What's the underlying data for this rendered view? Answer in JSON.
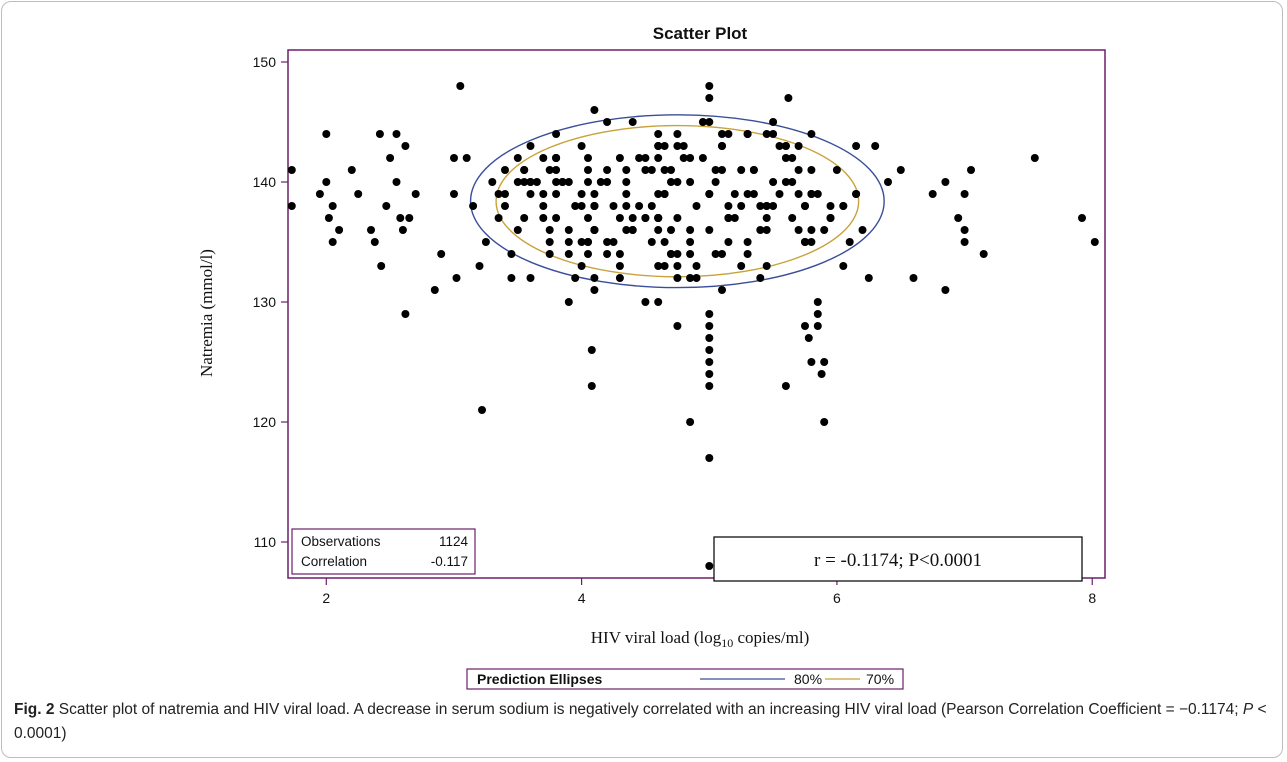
{
  "chart_data": {
    "type": "scatter",
    "title": "Scatter Plot",
    "xlabel": {
      "pre": "HIV viral load (log",
      "sub": "10",
      "post": " copies/ml)"
    },
    "ylabel": "Natremia (mmol/l)",
    "xlim": [
      1.7,
      8.1
    ],
    "ylim": [
      107,
      151
    ],
    "xticks": [
      2,
      4,
      6,
      8
    ],
    "yticks": [
      110,
      120,
      130,
      140,
      150
    ],
    "grid": false,
    "annotation": "r = -0.1174; P<0.0001",
    "stats": {
      "observations_label": "Observations",
      "observations_value": "1124",
      "correlation_label": "Correlation",
      "correlation_value": "-0.117"
    },
    "legend": {
      "title": "Prediction Ellipses",
      "items": [
        {
          "label": "80%",
          "color": "#3a4e9a"
        },
        {
          "label": "70%",
          "color": "#c8a23a"
        }
      ],
      "placement": "bottom"
    },
    "ellipses": [
      {
        "level": "80%",
        "center": [
          4.75,
          138.4
        ],
        "radii": [
          1.62,
          7.2
        ],
        "color": "#3a4e9a"
      },
      {
        "level": "70%",
        "center": [
          4.75,
          138.4
        ],
        "radii": [
          1.42,
          6.3
        ],
        "color": "#c8a23a"
      }
    ],
    "points": [
      [
        1.73,
        141
      ],
      [
        1.73,
        138
      ],
      [
        1.95,
        139
      ],
      [
        2.0,
        140
      ],
      [
        2.0,
        144
      ],
      [
        2.02,
        137
      ],
      [
        2.05,
        138
      ],
      [
        2.05,
        135
      ],
      [
        2.1,
        136
      ],
      [
        2.2,
        141
      ],
      [
        2.25,
        139
      ],
      [
        2.35,
        136
      ],
      [
        2.38,
        135
      ],
      [
        2.42,
        144
      ],
      [
        2.43,
        133
      ],
      [
        2.47,
        138
      ],
      [
        2.5,
        142
      ],
      [
        2.55,
        144
      ],
      [
        2.55,
        140
      ],
      [
        2.58,
        137
      ],
      [
        2.6,
        136
      ],
      [
        2.62,
        143
      ],
      [
        2.62,
        129
      ],
      [
        2.65,
        137
      ],
      [
        2.7,
        139
      ],
      [
        2.85,
        131
      ],
      [
        2.9,
        134
      ],
      [
        3.0,
        139
      ],
      [
        3.0,
        142
      ],
      [
        3.02,
        132
      ],
      [
        3.05,
        148
      ],
      [
        3.1,
        142
      ],
      [
        3.15,
        138
      ],
      [
        3.2,
        133
      ],
      [
        3.22,
        121
      ],
      [
        3.25,
        135
      ],
      [
        3.4,
        141
      ],
      [
        3.45,
        132
      ],
      [
        3.5,
        136
      ],
      [
        3.6,
        132
      ],
      [
        3.75,
        134
      ],
      [
        3.9,
        130
      ],
      [
        3.95,
        132
      ],
      [
        4.05,
        141
      ],
      [
        4.08,
        126
      ],
      [
        4.08,
        123
      ],
      [
        4.1,
        146
      ],
      [
        4.1,
        131
      ],
      [
        4.2,
        135
      ],
      [
        4.3,
        133
      ],
      [
        4.4,
        137
      ],
      [
        4.5,
        130
      ],
      [
        4.55,
        138
      ],
      [
        4.6,
        130
      ],
      [
        4.7,
        134
      ],
      [
        4.75,
        128
      ],
      [
        4.8,
        142
      ],
      [
        4.85,
        120
      ],
      [
        4.9,
        132
      ],
      [
        5.0,
        148
      ],
      [
        5.0,
        147
      ],
      [
        5.0,
        145
      ],
      [
        5.0,
        129
      ],
      [
        5.0,
        128
      ],
      [
        5.0,
        127
      ],
      [
        5.0,
        126
      ],
      [
        5.0,
        125
      ],
      [
        5.0,
        124
      ],
      [
        5.0,
        123
      ],
      [
        5.0,
        117
      ],
      [
        5.0,
        108
      ],
      [
        5.05,
        140
      ],
      [
        5.1,
        131
      ],
      [
        5.15,
        144
      ],
      [
        5.25,
        133
      ],
      [
        5.3,
        135
      ],
      [
        5.4,
        132
      ],
      [
        5.45,
        136
      ],
      [
        5.6,
        123
      ],
      [
        5.62,
        147
      ],
      [
        5.7,
        141
      ],
      [
        5.75,
        128
      ],
      [
        5.78,
        127
      ],
      [
        5.8,
        125
      ],
      [
        5.85,
        130
      ],
      [
        5.85,
        129
      ],
      [
        5.85,
        128
      ],
      [
        5.88,
        124
      ],
      [
        5.9,
        125
      ],
      [
        5.9,
        120
      ],
      [
        5.95,
        137
      ],
      [
        6.0,
        141
      ],
      [
        6.05,
        133
      ],
      [
        6.1,
        135
      ],
      [
        6.15,
        139
      ],
      [
        6.2,
        136
      ],
      [
        6.25,
        132
      ],
      [
        6.3,
        143
      ],
      [
        6.4,
        140
      ],
      [
        6.5,
        141
      ],
      [
        6.6,
        132
      ],
      [
        6.75,
        139
      ],
      [
        6.85,
        131
      ],
      [
        6.85,
        140
      ],
      [
        6.95,
        137
      ],
      [
        7.0,
        139
      ],
      [
        7.0,
        136
      ],
      [
        7.0,
        135
      ],
      [
        7.05,
        141
      ],
      [
        7.15,
        134
      ],
      [
        7.55,
        142
      ],
      [
        7.92,
        137
      ],
      [
        8.02,
        135
      ],
      [
        3.5,
        142
      ],
      [
        3.6,
        143
      ],
      [
        3.8,
        144
      ],
      [
        4.2,
        145
      ],
      [
        4.4,
        145
      ],
      [
        4.6,
        143
      ],
      [
        4.95,
        145
      ],
      [
        5.3,
        144
      ],
      [
        5.5,
        145
      ],
      [
        5.6,
        143
      ],
      [
        5.8,
        144
      ],
      [
        6.15,
        143
      ],
      [
        3.3,
        140
      ],
      [
        3.35,
        137
      ],
      [
        3.45,
        134
      ]
    ],
    "dense_cluster": {
      "x_range": [
        3.3,
        6.2
      ],
      "y_values": [
        132,
        133,
        134,
        135,
        136,
        137,
        138,
        139,
        140,
        141,
        142,
        143,
        144
      ]
    }
  },
  "caption": {
    "label": "Fig. 2",
    "text_before_p": " Scatter plot of natremia and HIV viral load. A decrease in serum sodium is negatively correlated with an increasing HIV viral load (Pearson Correlation Coefficient = −0.1174; ",
    "p_symbol": "P",
    "text_after_p": " < 0.0001)"
  }
}
